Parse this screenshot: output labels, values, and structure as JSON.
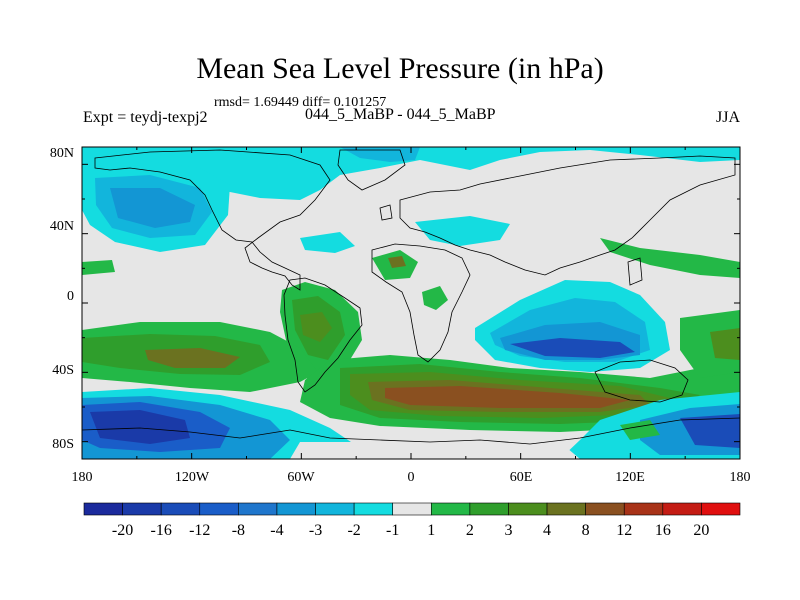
{
  "title": "Mean Sea Level Pressure (in hPa)",
  "stats": "rmsd= 1.69449 diff= 0.101257",
  "experiment_label": "Expt = teydj-texpj2",
  "experiment_names": "044_5_MaBP - 044_5_MaBP",
  "season": "JJA",
  "axes": {
    "lon_ticks": [
      "180",
      "120W",
      "60W",
      "0",
      "60E",
      "120E",
      "180"
    ],
    "lat_ticks": [
      "80N",
      "40N",
      "0",
      "40S",
      "80S"
    ]
  },
  "colorbar": {
    "labels": [
      "-20",
      "-16",
      "-12",
      "-8",
      "-4",
      "-3",
      "-2",
      "-1",
      "1",
      "2",
      "3",
      "4",
      "8",
      "12",
      "16",
      "20"
    ],
    "colors": [
      "#1b2a9c",
      "#1a3aa8",
      "#1a4cb8",
      "#1a5dc8",
      "#1f76cc",
      "#1396d4",
      "#12b5dc",
      "#14dce0",
      "#e6e6e6",
      "#23b847",
      "#2f9e2c",
      "#4c8e1e",
      "#6b7220",
      "#8a5020",
      "#a83318",
      "#c41c14",
      "#e00f0f"
    ]
  },
  "chart_data": {
    "type": "heatmap",
    "title": "Mean Sea Level Pressure (in hPa)",
    "variable": "Mean Sea Level Pressure difference",
    "units": "hPa",
    "x_range": [
      -180,
      180
    ],
    "y_range": [
      -90,
      90
    ],
    "x_ticks": [
      "180",
      "120W",
      "60W",
      "0",
      "60E",
      "120E",
      "180"
    ],
    "y_ticks": [
      "80N",
      "40N",
      "0",
      "40S",
      "80S"
    ],
    "levels": [
      -20,
      -16,
      -12,
      -8,
      -4,
      -3,
      -2,
      -1,
      1,
      2,
      3,
      4,
      8,
      12,
      16,
      20
    ],
    "features": [
      {
        "name": "north-pacific-low",
        "lon": -150,
        "lat": 47,
        "value": -4
      },
      {
        "name": "arctic-low-band",
        "lon": 0,
        "lat": 75,
        "value": -2
      },
      {
        "name": "southern-indian-ocean-low",
        "lon": 85,
        "lat": -30,
        "value": -6
      },
      {
        "name": "southern-ocean-high",
        "lon": 40,
        "lat": -55,
        "value": 10
      },
      {
        "name": "south-pacific-high",
        "lon": -150,
        "lat": -35,
        "value": 5
      },
      {
        "name": "south-america-high",
        "lon": -70,
        "lat": -10,
        "value": 4
      },
      {
        "name": "antarctic-pacific-low",
        "lon": -140,
        "lat": -75,
        "value": -8
      },
      {
        "name": "antarctic-pacific-east-low",
        "lon": 160,
        "lat": -75,
        "value": -8
      }
    ]
  }
}
